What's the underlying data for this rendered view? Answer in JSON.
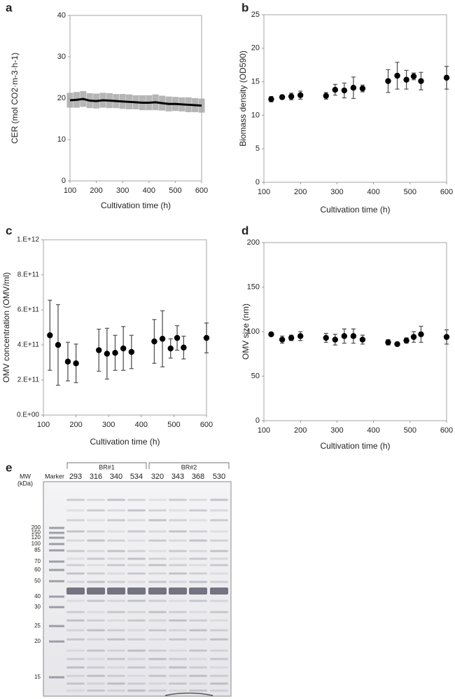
{
  "chart_data": [
    {
      "panel": "a",
      "type": "line",
      "xlabel": "Cultivation time (h)",
      "ylabel": "CER (mol CO2·m-3·h-1)",
      "x": [
        100,
        125,
        150,
        175,
        200,
        225,
        250,
        275,
        300,
        325,
        350,
        375,
        400,
        425,
        450,
        475,
        500,
        525,
        550,
        575,
        600
      ],
      "values": [
        19.5,
        19.6,
        19.8,
        19.4,
        19.3,
        19.5,
        19.4,
        19.3,
        19.2,
        19.1,
        19.0,
        18.9,
        18.9,
        19.0,
        18.8,
        18.6,
        18.6,
        18.5,
        18.4,
        18.3,
        18.2
      ],
      "errors": [
        1.8,
        1.9,
        1.9,
        1.8,
        1.8,
        1.8,
        1.8,
        1.7,
        1.8,
        1.8,
        1.7,
        1.8,
        1.8,
        1.9,
        1.8,
        1.8,
        1.7,
        1.7,
        1.8,
        1.7,
        1.7
      ],
      "color": "#000000",
      "error_color": "#a8a8a8",
      "xlim": [
        100,
        600
      ],
      "xticks": [
        100,
        200,
        300,
        400,
        500,
        600
      ],
      "ylim": [
        0,
        40
      ],
      "yticks": [
        0,
        10,
        20,
        30,
        40
      ]
    },
    {
      "panel": "b",
      "type": "scatter",
      "xlabel": "Cultivation time (h)",
      "ylabel": "Biomass density (OD590)",
      "x": [
        120,
        150,
        175,
        200,
        270,
        295,
        320,
        345,
        370,
        440,
        465,
        490,
        510,
        530,
        600
      ],
      "values": [
        12.4,
        12.7,
        12.8,
        13.0,
        12.9,
        13.8,
        13.7,
        14.1,
        14.0,
        15.1,
        15.9,
        15.3,
        15.8,
        15.1,
        15.6
      ],
      "errors": [
        0.4,
        0.3,
        0.5,
        0.6,
        0.5,
        0.8,
        1.1,
        1.6,
        0.5,
        1.7,
        2.0,
        1.4,
        0.5,
        1.3,
        1.7
      ],
      "color": "#000000",
      "error_color": "#555555",
      "xlim": [
        100,
        600
      ],
      "xticks": [
        100,
        200,
        300,
        400,
        500,
        600
      ],
      "ylim": [
        0,
        25
      ],
      "yticks": [
        0,
        5,
        10,
        15,
        20,
        25
      ]
    },
    {
      "panel": "c",
      "type": "scatter",
      "xlabel": "Cultivation time (h)",
      "ylabel": "OMV concentration (OMV/ml)",
      "x": [
        120,
        145,
        175,
        200,
        270,
        295,
        320,
        345,
        370,
        440,
        465,
        490,
        510,
        530,
        600
      ],
      "values": [
        455000000000,
        400000000000,
        305000000000,
        295000000000,
        370000000000,
        350000000000,
        355000000000,
        380000000000,
        360000000000,
        420000000000,
        435000000000,
        380000000000,
        440000000000,
        385000000000,
        440000000000
      ],
      "errors": [
        200000000000,
        230000000000,
        110000000000,
        110000000000,
        120000000000,
        145000000000,
        100000000000,
        125000000000,
        95000000000,
        125000000000,
        160000000000,
        55000000000,
        70000000000,
        65000000000,
        85000000000
      ],
      "color": "#000000",
      "error_color": "#555555",
      "xlim": [
        100,
        600
      ],
      "xticks": [
        100,
        200,
        300,
        400,
        500,
        600
      ],
      "ylim": [
        0,
        1000000000000
      ],
      "yticks": [
        {
          "value": 0,
          "label": "0.E+00"
        },
        {
          "value": 200000000000,
          "label": "2.E+11"
        },
        {
          "value": 400000000000,
          "label": "4.E+11"
        },
        {
          "value": 600000000000,
          "label": "6.E+11"
        },
        {
          "value": 800000000000,
          "label": "8.E+11"
        },
        {
          "value": 1000000000000,
          "label": "1.E+12"
        }
      ]
    },
    {
      "panel": "d",
      "type": "scatter",
      "xlabel": "Cultivation time (h)",
      "ylabel": "OMV size (nm)",
      "x": [
        120,
        150,
        175,
        200,
        270,
        295,
        320,
        345,
        370,
        440,
        465,
        490,
        510,
        530,
        600
      ],
      "values": [
        97,
        91,
        93,
        95,
        93,
        91,
        95,
        95,
        91,
        88,
        86,
        90,
        94,
        97,
        94
      ],
      "errors": [
        2,
        4,
        3,
        5,
        5,
        6,
        8,
        8,
        5,
        3,
        1,
        3,
        6,
        9,
        8
      ],
      "color": "#000000",
      "error_color": "#555555",
      "xlim": [
        100,
        600
      ],
      "xticks": [
        100,
        200,
        300,
        400,
        500,
        600
      ],
      "ylim": [
        0,
        200
      ],
      "yticks": [
        0,
        50,
        100,
        150,
        200
      ]
    }
  ],
  "gel": {
    "panel": "e",
    "mw_title": "MW",
    "mw_unit": "(kDa)",
    "marker_label": "Marker",
    "groups": [
      {
        "name": "BR#1",
        "lanes": [
          "293",
          "316",
          "340",
          "534"
        ]
      },
      {
        "name": "BR#2",
        "lanes": [
          "320",
          "343",
          "368",
          "530"
        ]
      }
    ],
    "mw_markers": [
      "200",
      "150",
      "120",
      "100",
      "85",
      "70",
      "60",
      "50",
      "40",
      "30",
      "25",
      "20",
      "15"
    ]
  }
}
